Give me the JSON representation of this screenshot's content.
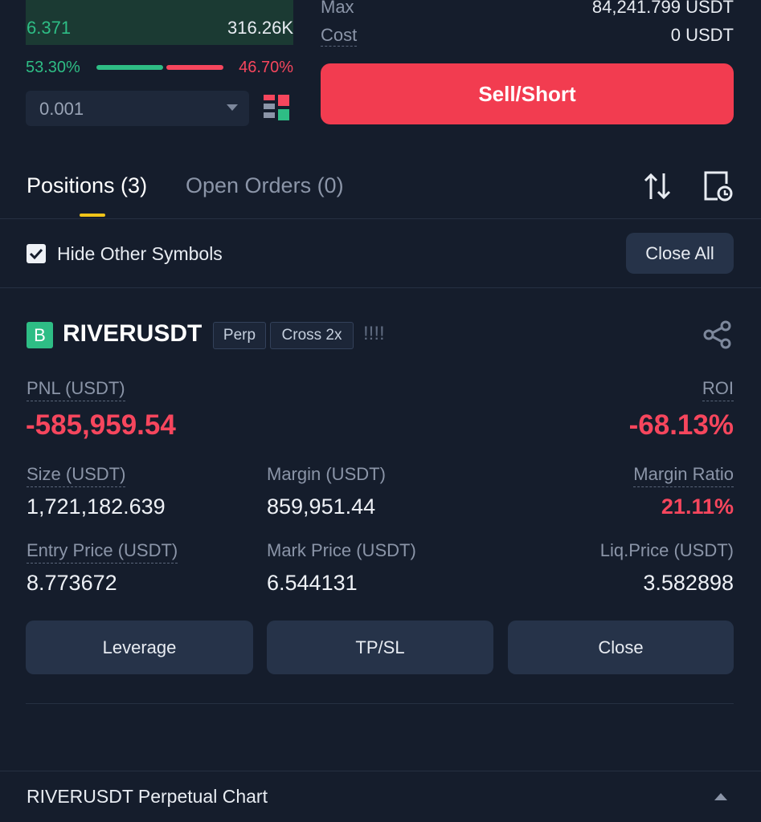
{
  "order_book": {
    "price": "6.371",
    "amount": "316.26K",
    "buy_ratio": "53.30%",
    "sell_ratio": "46.70%",
    "precision": "0.001"
  },
  "order_form": {
    "max_label": "Max",
    "max_value": "84,241.799 USDT",
    "cost_label": "Cost",
    "cost_value": "0 USDT",
    "sell_button": "Sell/Short"
  },
  "tabs": {
    "positions": "Positions (3)",
    "open_orders": "Open Orders (0)"
  },
  "filter": {
    "hide_other": "Hide Other Symbols",
    "close_all": "Close All"
  },
  "position": {
    "badge": "B",
    "symbol": "RIVERUSDT",
    "type_tag": "Perp",
    "margin_tag": "Cross 2x",
    "risk": "!!!!",
    "pnl_label": "PNL (USDT)",
    "pnl_value": "-585,959.54",
    "roi_label": "ROI",
    "roi_value": "-68.13%",
    "size_label": "Size (USDT)",
    "size_value": "1,721,182.639",
    "margin_label": "Margin (USDT)",
    "margin_value": "859,951.44",
    "ratio_label": "Margin Ratio",
    "ratio_value": "21.11%",
    "entry_label": "Entry Price (USDT)",
    "entry_value": "8.773672",
    "mark_label": "Mark Price (USDT)",
    "mark_value": "6.544131",
    "liq_label": "Liq.Price (USDT)",
    "liq_value": "3.582898",
    "buttons": [
      "Leverage",
      "TP/SL",
      "Close"
    ]
  },
  "footer": {
    "chart_link": "RIVERUSDT Perpetual Chart"
  }
}
